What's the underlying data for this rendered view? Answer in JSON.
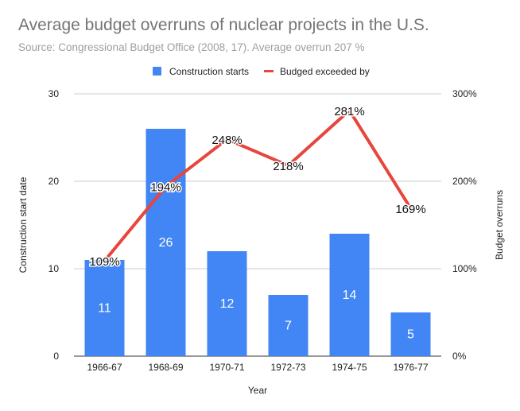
{
  "chart_data": {
    "type": "bar",
    "title": "Average budget overruns of nuclear projects in the U.S.",
    "subtitle": "Source: Congressional Budget Office (2008, 17). Average overrun 207 %",
    "xlabel": "Year",
    "ylabel": "Construction start date",
    "y2label": "Budget overruns",
    "categories": [
      "1966-67",
      "1968-69",
      "1970-71",
      "1972-73",
      "1974-75",
      "1976-77"
    ],
    "ylim": [
      0,
      30
    ],
    "y_ticks": [
      "0",
      "10",
      "20",
      "30"
    ],
    "y2lim": [
      0,
      300
    ],
    "y2_ticks": [
      "0%",
      "100%",
      "200%",
      "300%"
    ],
    "legend_position": "top",
    "series": [
      {
        "name": "Construction starts",
        "type": "bar",
        "axis": "left",
        "color": "#4285f4",
        "values": [
          11,
          26,
          12,
          7,
          14,
          5
        ],
        "labels": [
          "11",
          "26",
          "12",
          "7",
          "14",
          "5"
        ]
      },
      {
        "name": "Budged exceeded by",
        "type": "line",
        "axis": "right",
        "color": "#e8453c",
        "values": [
          109,
          194,
          248,
          218,
          281,
          169
        ],
        "labels": [
          "109%",
          "194%",
          "248%",
          "218%",
          "281%",
          "169%"
        ]
      }
    ]
  }
}
